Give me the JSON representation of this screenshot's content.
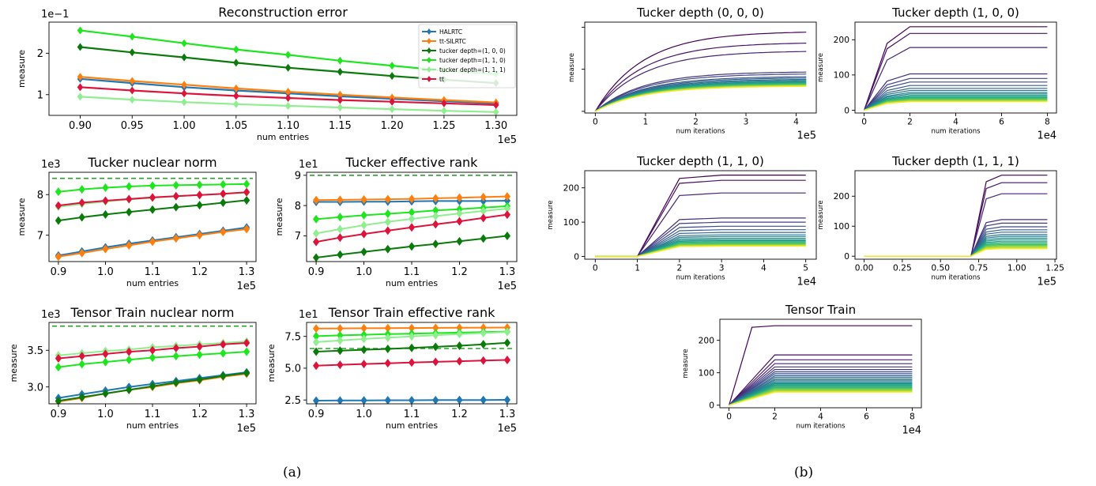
{
  "captions": {
    "left": "(a)",
    "right": "(b)"
  },
  "colors": {
    "HALRTC": "#1f77b4",
    "tt-SILRTC": "#ff7f0e",
    "tucker_100": "#0a7a0a",
    "tucker_110": "#1ee61e",
    "tucker_111": "#90ee90",
    "tt": "#dc143c",
    "reference": "#2ca02c"
  },
  "chart_data": [
    {
      "type": "line",
      "title": "Reconstruction error",
      "xlabel": "num entries",
      "ylabel": "measure",
      "x_multiplier_label": "1e5",
      "y_multiplier_label": "1e−1",
      "xlim": [
        0.87,
        1.32
      ],
      "ylim": [
        0.5,
        2.75
      ],
      "xticks": [
        0.9,
        0.95,
        1.0,
        1.05,
        1.1,
        1.15,
        1.2,
        1.25,
        1.3
      ],
      "xtick_labels": [
        "0.90",
        "0.95",
        "1.00",
        "1.05",
        "1.10",
        "1.15",
        "1.20",
        "1.25",
        "1.30"
      ],
      "yticks": [
        1,
        2
      ],
      "ytick_labels": [
        "1",
        "2"
      ],
      "legend": "top-right",
      "marker": "diamond",
      "x": [
        0.9,
        0.95,
        1.0,
        1.05,
        1.1,
        1.15,
        1.2,
        1.25,
        1.3
      ],
      "series": [
        {
          "name": "HALRTC",
          "color_key": "HALRTC",
          "values": [
            1.38,
            1.28,
            1.18,
            1.1,
            1.03,
            0.96,
            0.9,
            0.84,
            0.79
          ]
        },
        {
          "name": "tt-SILRTC",
          "color_key": "tt-SILRTC",
          "values": [
            1.43,
            1.33,
            1.24,
            1.15,
            1.07,
            1.0,
            0.93,
            0.87,
            0.81
          ]
        },
        {
          "name": "tucker depth=(1, 0, 0)",
          "color_key": "tucker_100",
          "values": [
            2.15,
            2.02,
            1.9,
            1.77,
            1.65,
            1.55,
            1.45,
            1.36,
            1.28
          ]
        },
        {
          "name": "tucker depth=(1, 1, 0)",
          "color_key": "tucker_110",
          "values": [
            2.55,
            2.4,
            2.24,
            2.09,
            1.96,
            1.82,
            1.7,
            1.58,
            1.5
          ]
        },
        {
          "name": "tucker depth=(1, 1, 1)",
          "color_key": "tucker_111",
          "values": [
            0.95,
            0.88,
            0.82,
            0.77,
            0.73,
            0.69,
            0.65,
            0.61,
            0.58
          ]
        },
        {
          "name": "tt",
          "color_key": "tt",
          "values": [
            1.18,
            1.1,
            1.03,
            0.97,
            0.92,
            0.87,
            0.83,
            0.79,
            0.75
          ]
        }
      ]
    },
    {
      "type": "line",
      "title": "Tucker nuclear norm",
      "xlabel": "num entries",
      "ylabel": "measure",
      "x_multiplier_label": "1e5",
      "y_multiplier_label": "1e3",
      "xlim": [
        0.88,
        1.32
      ],
      "ylim": [
        6.35,
        8.55
      ],
      "xticks": [
        0.9,
        1.0,
        1.1,
        1.2,
        1.3
      ],
      "xtick_labels": [
        "0.9",
        "1.0",
        "1.1",
        "1.2",
        "1.3"
      ],
      "yticks": [
        7,
        8
      ],
      "ytick_labels": [
        "7",
        "8"
      ],
      "reference_line": 8.4,
      "marker": "diamond",
      "x": [
        0.9,
        0.95,
        1.0,
        1.05,
        1.1,
        1.15,
        1.2,
        1.25,
        1.3
      ],
      "series": [
        {
          "name": "HALRTC",
          "color_key": "HALRTC",
          "values": [
            6.5,
            6.6,
            6.7,
            6.79,
            6.87,
            6.95,
            7.03,
            7.11,
            7.19
          ]
        },
        {
          "name": "tt-SILRTC",
          "color_key": "tt-SILRTC",
          "values": [
            6.47,
            6.56,
            6.66,
            6.75,
            6.84,
            6.92,
            7.0,
            7.08,
            7.15
          ]
        },
        {
          "name": "tucker depth=(1, 0, 0)",
          "color_key": "tucker_100",
          "values": [
            7.36,
            7.44,
            7.51,
            7.57,
            7.63,
            7.69,
            7.74,
            7.8,
            7.86
          ]
        },
        {
          "name": "tucker depth=(1, 1, 0)",
          "color_key": "tucker_110",
          "values": [
            8.07,
            8.13,
            8.17,
            8.2,
            8.22,
            8.23,
            8.24,
            8.25,
            8.26
          ]
        },
        {
          "name": "tucker depth=(1, 1, 1)",
          "color_key": "tucker_111",
          "values": [
            7.7,
            7.77,
            7.83,
            7.88,
            7.92,
            7.96,
            7.99,
            8.02,
            8.05
          ]
        },
        {
          "name": "tt",
          "color_key": "tt",
          "values": [
            7.73,
            7.8,
            7.85,
            7.89,
            7.93,
            7.96,
            7.99,
            8.02,
            8.06
          ]
        }
      ]
    },
    {
      "type": "line",
      "title": "Tucker effective rank",
      "xlabel": "num entries",
      "ylabel": "measure",
      "x_multiplier_label": "1e5",
      "y_multiplier_label": "1e1",
      "xlim": [
        0.88,
        1.32
      ],
      "ylim": [
        6.15,
        9.1
      ],
      "xticks": [
        0.9,
        1.0,
        1.1,
        1.2,
        1.3
      ],
      "xtick_labels": [
        "0.9",
        "1.0",
        "1.1",
        "1.2",
        "1.3"
      ],
      "yticks": [
        7,
        8,
        9
      ],
      "ytick_labels": [
        "7",
        "8",
        "9"
      ],
      "reference_line": 9.0,
      "marker": "diamond",
      "x": [
        0.9,
        0.95,
        1.0,
        1.05,
        1.1,
        1.15,
        1.2,
        1.25,
        1.3
      ],
      "series": [
        {
          "name": "HALRTC",
          "color_key": "HALRTC",
          "values": [
            8.12,
            8.12,
            8.13,
            8.13,
            8.14,
            8.15,
            8.15,
            8.15,
            8.16
          ]
        },
        {
          "name": "tt-SILRTC",
          "color_key": "tt-SILRTC",
          "values": [
            8.18,
            8.19,
            8.2,
            8.21,
            8.22,
            8.24,
            8.26,
            8.28,
            8.3
          ]
        },
        {
          "name": "tucker depth=(1, 0, 0)",
          "color_key": "tucker_100",
          "values": [
            6.28,
            6.38,
            6.47,
            6.56,
            6.65,
            6.73,
            6.82,
            6.91,
            7.0
          ]
        },
        {
          "name": "tucker depth=(1, 1, 0)",
          "color_key": "tucker_110",
          "values": [
            7.55,
            7.62,
            7.68,
            7.73,
            7.78,
            7.84,
            7.88,
            7.93,
            7.98
          ]
        },
        {
          "name": "tucker depth=(1, 1, 1)",
          "color_key": "tucker_111",
          "values": [
            7.08,
            7.22,
            7.35,
            7.46,
            7.56,
            7.65,
            7.74,
            7.82,
            7.9
          ]
        },
        {
          "name": "tt",
          "color_key": "tt",
          "values": [
            6.8,
            6.94,
            7.06,
            7.17,
            7.28,
            7.38,
            7.48,
            7.59,
            7.7
          ]
        }
      ]
    },
    {
      "type": "line",
      "title": "Tensor Train nuclear norm",
      "xlabel": "num entries",
      "ylabel": "measure",
      "x_multiplier_label": "1e5",
      "y_multiplier_label": "1e3",
      "xlim": [
        0.88,
        1.32
      ],
      "ylim": [
        2.77,
        3.88
      ],
      "xticks": [
        0.9,
        1.0,
        1.1,
        1.2,
        1.3
      ],
      "xtick_labels": [
        "0.9",
        "1.0",
        "1.1",
        "1.2",
        "1.3"
      ],
      "yticks": [
        3.0,
        3.5
      ],
      "ytick_labels": [
        "3.0",
        "3.5"
      ],
      "reference_line": 3.83,
      "marker": "diamond",
      "x": [
        0.9,
        0.95,
        1.0,
        1.05,
        1.1,
        1.15,
        1.2,
        1.25,
        1.3
      ],
      "series": [
        {
          "name": "HALRTC",
          "color_key": "HALRTC",
          "values": [
            2.85,
            2.9,
            2.95,
            3.0,
            3.04,
            3.08,
            3.12,
            3.16,
            3.2
          ]
        },
        {
          "name": "tt-SILRTC",
          "color_key": "tt-SILRTC",
          "values": [
            2.8,
            2.85,
            2.91,
            2.96,
            3.0,
            3.05,
            3.09,
            3.14,
            3.18
          ]
        },
        {
          "name": "tucker depth=(1, 0, 0)",
          "color_key": "tucker_100",
          "values": [
            2.81,
            2.86,
            2.91,
            2.96,
            3.01,
            3.06,
            3.1,
            3.15,
            3.19
          ]
        },
        {
          "name": "tucker depth=(1, 1, 0)",
          "color_key": "tucker_110",
          "values": [
            3.27,
            3.31,
            3.34,
            3.37,
            3.4,
            3.42,
            3.44,
            3.46,
            3.48
          ]
        },
        {
          "name": "tucker depth=(1, 1, 1)",
          "color_key": "tucker_111",
          "values": [
            3.43,
            3.46,
            3.49,
            3.51,
            3.54,
            3.56,
            3.58,
            3.6,
            3.62
          ]
        },
        {
          "name": "tt",
          "color_key": "tt",
          "values": [
            3.39,
            3.42,
            3.45,
            3.48,
            3.5,
            3.53,
            3.55,
            3.58,
            3.6
          ]
        }
      ]
    },
    {
      "type": "line",
      "title": "Tensor Train effective rank",
      "xlabel": "num entries",
      "ylabel": "measure",
      "x_multiplier_label": "1e5",
      "y_multiplier_label": "1e1",
      "xlim": [
        0.88,
        1.32
      ],
      "ylim": [
        2.2,
        8.6
      ],
      "xticks": [
        0.9,
        1.0,
        1.1,
        1.2,
        1.3
      ],
      "xtick_labels": [
        "0.9",
        "1.0",
        "1.1",
        "1.2",
        "1.3"
      ],
      "yticks": [
        2.5,
        5.0,
        7.5
      ],
      "ytick_labels": [
        "2.5",
        "5.0",
        "7.5"
      ],
      "reference_line": 6.55,
      "marker": "diamond",
      "x": [
        0.9,
        0.95,
        1.0,
        1.05,
        1.1,
        1.15,
        1.2,
        1.25,
        1.3
      ],
      "series": [
        {
          "name": "HALRTC",
          "color_key": "HALRTC",
          "values": [
            2.45,
            2.46,
            2.47,
            2.48,
            2.48,
            2.49,
            2.5,
            2.5,
            2.51
          ]
        },
        {
          "name": "tt-SILRTC",
          "color_key": "tt-SILRTC",
          "values": [
            8.12,
            8.13,
            8.14,
            8.15,
            8.16,
            8.17,
            8.18,
            8.19,
            8.2
          ]
        },
        {
          "name": "tucker depth=(1, 0, 0)",
          "color_key": "tucker_100",
          "values": [
            6.3,
            6.38,
            6.45,
            6.52,
            6.6,
            6.68,
            6.77,
            6.88,
            7.0
          ]
        },
        {
          "name": "tucker depth=(1, 1, 0)",
          "color_key": "tucker_110",
          "values": [
            7.52,
            7.58,
            7.63,
            7.68,
            7.72,
            7.76,
            7.8,
            7.84,
            7.88
          ]
        },
        {
          "name": "tucker depth=(1, 1, 1)",
          "color_key": "tucker_111",
          "values": [
            7.05,
            7.18,
            7.3,
            7.4,
            7.5,
            7.6,
            7.68,
            7.76,
            7.85
          ]
        },
        {
          "name": "tt",
          "color_key": "tt",
          "values": [
            5.2,
            5.27,
            5.33,
            5.39,
            5.45,
            5.5,
            5.55,
            5.6,
            5.65
          ]
        }
      ]
    },
    {
      "type": "line",
      "title": "Tucker depth (0, 0, 0)",
      "xlabel": "num iterations",
      "ylabel": "measure",
      "x_multiplier_label": "1e5",
      "xlim": [
        -0.21,
        4.4
      ],
      "ylim": [
        -5,
        265
      ],
      "xticks": [
        0,
        1,
        2,
        3,
        4
      ],
      "xtick_labels": [
        "0",
        "1",
        "2",
        "3",
        "4"
      ],
      "ytick_values_unlabeled": [
        0,
        125,
        250
      ],
      "colormap": "viridis",
      "curve_family": "saturating",
      "rate": 1.05,
      "x_end": 4.2,
      "finals": [
        238,
        205,
        180,
        118,
        112,
        104,
        100,
        96,
        93,
        90,
        88,
        86,
        84,
        82,
        80,
        79,
        78,
        77,
        76,
        75
      ]
    },
    {
      "type": "line",
      "title": "Tucker depth (1, 0, 0)",
      "xlabel": "num iterations",
      "ylabel": "measure",
      "x_multiplier_label": "1e4",
      "xlim": [
        -0.4,
        8.4
      ],
      "ylim": [
        -8,
        250
      ],
      "xticks": [
        0,
        2,
        4,
        6,
        8
      ],
      "xtick_labels": [
        "0",
        "2",
        "4",
        "6",
        "8"
      ],
      "yticks": [
        0,
        100,
        200
      ],
      "ytick_labels": [
        "0",
        "100",
        "200"
      ],
      "colormap": "viridis",
      "curve_family": "ramp",
      "x_start": 0,
      "x_end": 8,
      "ramp_points": [
        [
          0,
          0
        ],
        [
          1,
          0.8
        ],
        [
          2,
          1.0
        ]
      ],
      "finals": [
        237,
        218,
        178,
        103,
        90,
        80,
        70,
        62,
        56,
        50,
        46,
        42,
        39,
        36,
        34,
        32,
        30,
        28,
        27,
        26,
        25,
        24
      ]
    },
    {
      "type": "line",
      "title": "Tucker depth (1, 1, 0)",
      "xlabel": "num iterations",
      "ylabel": "measure",
      "x_multiplier_label": "1e4",
      "xlim": [
        -0.25,
        5.25
      ],
      "ylim": [
        -8,
        250
      ],
      "xticks": [
        0,
        1,
        2,
        3,
        4,
        5
      ],
      "xtick_labels": [
        "0",
        "1",
        "2",
        "3",
        "4",
        "5"
      ],
      "yticks": [
        0,
        100,
        200
      ],
      "ytick_labels": [
        "0",
        "100",
        "200"
      ],
      "colormap": "viridis",
      "curve_family": "ramp",
      "x_start": 0,
      "x_end": 5,
      "ramp_points": [
        [
          0,
          0
        ],
        [
          1,
          0
        ],
        [
          2,
          0.96
        ],
        [
          3,
          1.0
        ]
      ],
      "finals": [
        237,
        222,
        185,
        112,
        100,
        88,
        78,
        70,
        63,
        58,
        53,
        49,
        46,
        43,
        40,
        38,
        36,
        34,
        33,
        32,
        31,
        30
      ]
    },
    {
      "type": "line",
      "title": "Tucker depth (1, 1, 1)",
      "xlabel": "num iterations",
      "ylabel": "measure",
      "x_multiplier_label": "1e5",
      "xlim": [
        -0.06,
        1.26
      ],
      "ylim": [
        -10,
        285
      ],
      "xticks": [
        0,
        0.25,
        0.5,
        0.75,
        1.0,
        1.25
      ],
      "xtick_labels": [
        "0.00",
        "0.25",
        "0.50",
        "0.75",
        "1.00",
        "1.25"
      ],
      "yticks": [
        0,
        100,
        200
      ],
      "ytick_labels": [
        "0",
        "100",
        "200"
      ],
      "colormap": "viridis",
      "curve_family": "ramp",
      "x_start": 0,
      "x_end": 1.2,
      "ramp_points": [
        [
          0,
          0
        ],
        [
          0.7,
          0
        ],
        [
          0.8,
          0.92
        ],
        [
          0.9,
          1.0
        ]
      ],
      "finals": [
        270,
        245,
        208,
        122,
        110,
        98,
        88,
        80,
        72,
        66,
        60,
        55,
        50,
        46,
        42,
        39,
        36,
        33,
        31,
        29,
        27,
        25
      ]
    },
    {
      "type": "line",
      "title": "Tensor Train",
      "xlabel": "num iterations",
      "ylabel": "measure",
      "x_multiplier_label": "1e4",
      "xlim": [
        -0.4,
        8.4
      ],
      "ylim": [
        -8,
        265
      ],
      "xticks": [
        0,
        2,
        4,
        6,
        8
      ],
      "xtick_labels": [
        "0",
        "2",
        "4",
        "6",
        "8"
      ],
      "yticks": [
        0,
        100,
        200
      ],
      "ytick_labels": [
        "0",
        "100",
        "200"
      ],
      "colormap": "viridis",
      "curve_family": "ramp",
      "x_start": 0,
      "x_end": 8,
      "ramp_points": [
        [
          0,
          0
        ],
        [
          1,
          0.5
        ],
        [
          2,
          1.0
        ]
      ],
      "first_rises_fast": true,
      "finals": [
        245,
        155,
        140,
        128,
        118,
        110,
        103,
        97,
        91,
        86,
        81,
        77,
        73,
        69,
        66,
        63,
        60,
        57,
        55,
        53,
        51,
        49,
        47,
        45,
        43,
        42,
        41,
        40
      ]
    }
  ]
}
